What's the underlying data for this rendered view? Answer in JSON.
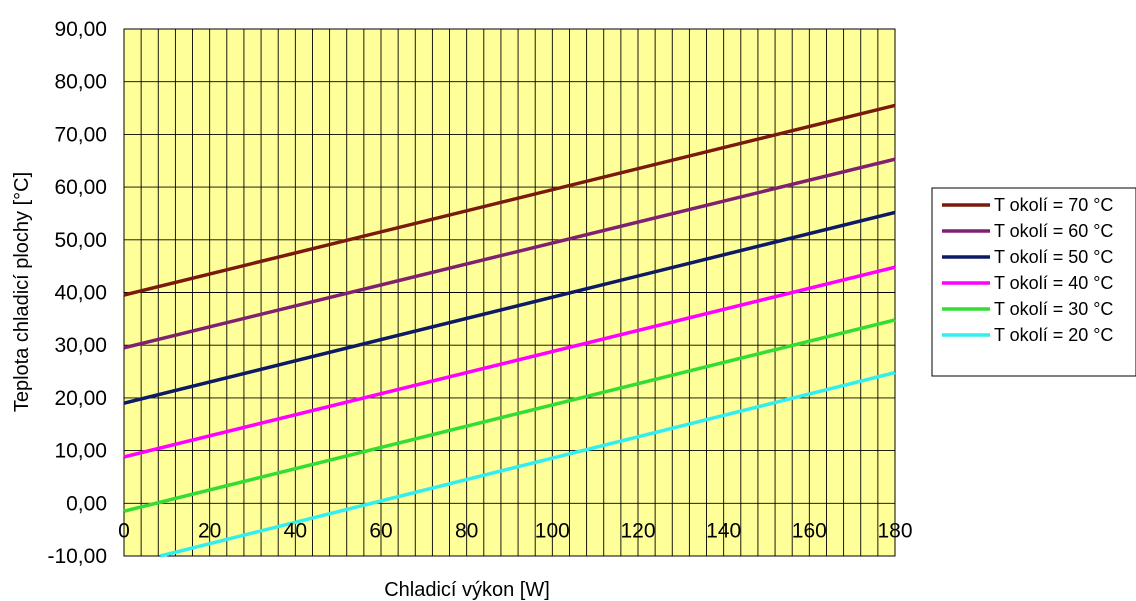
{
  "chart_data": {
    "type": "line",
    "xlabel": "Chladicí výkon [W]",
    "ylabel": "Teplota chladicí plochy [°C]",
    "xlim": [
      0,
      180
    ],
    "ylim": [
      -10,
      90
    ],
    "x_ticks": [
      "0",
      "20",
      "40",
      "60",
      "80",
      "100",
      "120",
      "140",
      "160",
      "180"
    ],
    "y_ticks": [
      "-10,00",
      "0,00",
      "10,00",
      "20,00",
      "30,00",
      "40,00",
      "50,00",
      "60,00",
      "70,00",
      "80,00",
      "90,00"
    ],
    "plot_background": "#ffff99",
    "grid": true,
    "legend_position": "right",
    "series": [
      {
        "name": "T okolí  = 70 °C",
        "color": "#7a1a0d",
        "x": [
          0,
          180
        ],
        "y": [
          39.5,
          75.5
        ]
      },
      {
        "name": "T okolí  = 60 °C",
        "color": "#802070",
        "x": [
          0,
          180
        ],
        "y": [
          29.5,
          65.3
        ]
      },
      {
        "name": "T okolí  = 50 °C",
        "color": "#0d1a66",
        "x": [
          0,
          180
        ],
        "y": [
          19.0,
          55.2
        ]
      },
      {
        "name": "T okolí  = 40 °C",
        "color": "#ff00ff",
        "x": [
          0,
          180
        ],
        "y": [
          8.8,
          44.8
        ]
      },
      {
        "name": "T okolí  = 30 °C",
        "color": "#33dd33",
        "x": [
          0,
          180
        ],
        "y": [
          -1.5,
          34.8
        ]
      },
      {
        "name": "T okolí  = 20 °C",
        "color": "#33eeee",
        "x": [
          8.5,
          180
        ],
        "y": [
          -10.0,
          24.8
        ]
      }
    ]
  }
}
